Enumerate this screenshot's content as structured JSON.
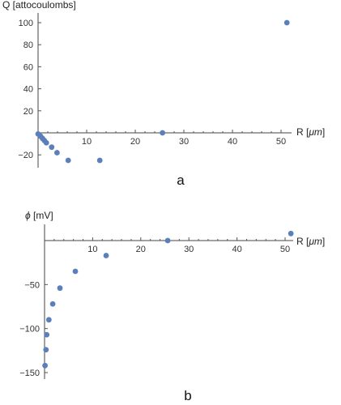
{
  "colors": {
    "point": "#5b7fba",
    "axis": "#444444"
  },
  "chart_data": [
    {
      "type": "scatter",
      "panel_label": "a",
      "xlabel_prefix": "R [",
      "xlabel_unit": "μm",
      "xlabel_suffix": "]",
      "ylabel": "Q [attocoulombs]",
      "xlim": [
        -1,
        53
      ],
      "ylim": [
        -30,
        107
      ],
      "x_ticks": [
        10,
        20,
        30,
        40,
        50
      ],
      "y_ticks": [
        -20,
        20,
        40,
        60,
        80,
        100
      ],
      "grid": false,
      "points": [
        {
          "x": 0.0,
          "y": -1
        },
        {
          "x": 0.5,
          "y": -3
        },
        {
          "x": 0.9,
          "y": -5
        },
        {
          "x": 1.3,
          "y": -7
        },
        {
          "x": 1.7,
          "y": -9
        },
        {
          "x": 2.8,
          "y": -13
        },
        {
          "x": 3.9,
          "y": -18
        },
        {
          "x": 6.2,
          "y": -25
        },
        {
          "x": 12.7,
          "y": -25
        },
        {
          "x": 25.6,
          "y": 0
        },
        {
          "x": 51.2,
          "y": 100
        }
      ]
    },
    {
      "type": "scatter",
      "panel_label": "b",
      "xlabel_prefix": "R [",
      "xlabel_unit": "μm",
      "xlabel_suffix": "]",
      "ylabel_symbol": "ϕ",
      "ylabel_unit": " [mV]",
      "xlim": [
        -1,
        53
      ],
      "ylim": [
        -150,
        15
      ],
      "x_ticks": [
        10,
        20,
        30,
        40,
        50
      ],
      "y_ticks": [
        -150,
        -100,
        -50
      ],
      "grid": false,
      "points": [
        {
          "x": 0.1,
          "y": -142
        },
        {
          "x": 0.3,
          "y": -124
        },
        {
          "x": 0.45,
          "y": -107
        },
        {
          "x": 0.9,
          "y": -90
        },
        {
          "x": 1.7,
          "y": -72
        },
        {
          "x": 3.2,
          "y": -54
        },
        {
          "x": 6.4,
          "y": -35
        },
        {
          "x": 12.8,
          "y": -17
        },
        {
          "x": 25.6,
          "y": 0
        },
        {
          "x": 51.2,
          "y": 8
        }
      ]
    }
  ]
}
